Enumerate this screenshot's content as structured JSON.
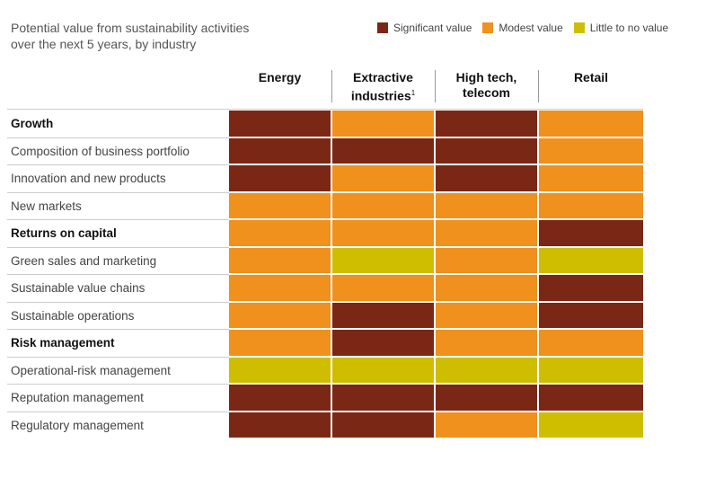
{
  "chart_data": {
    "type": "table",
    "subtitle": [
      "Potential value from sustainability activities",
      "over the next 5 years, by industry"
    ],
    "legend": [
      {
        "key": "S",
        "label": "Significant value",
        "color": "#7a2716"
      },
      {
        "key": "M",
        "label": "Modest value",
        "color": "#f0901d"
      },
      {
        "key": "L",
        "label": "Little to no value",
        "color": "#cfbe00"
      }
    ],
    "columns": [
      {
        "lines": [
          "Energy"
        ],
        "sup": ""
      },
      {
        "lines": [
          "Extractive",
          "industries"
        ],
        "sup": "1"
      },
      {
        "lines": [
          "High tech,",
          "telecom"
        ],
        "sup": ""
      },
      {
        "lines": [
          "Retail"
        ],
        "sup": ""
      }
    ],
    "rows": [
      {
        "label": "Growth",
        "bold": true,
        "values": [
          "S",
          "M",
          "S",
          "M"
        ]
      },
      {
        "label": "Composition of business portfolio",
        "bold": false,
        "values": [
          "S",
          "S",
          "S",
          "M"
        ]
      },
      {
        "label": "Innovation and new products",
        "bold": false,
        "values": [
          "S",
          "M",
          "S",
          "M"
        ]
      },
      {
        "label": "New markets",
        "bold": false,
        "values": [
          "M",
          "M",
          "M",
          "M"
        ]
      },
      {
        "label": "Returns on capital",
        "bold": true,
        "values": [
          "M",
          "M",
          "M",
          "S"
        ]
      },
      {
        "label": "Green sales and marketing",
        "bold": false,
        "values": [
          "M",
          "L",
          "M",
          "L"
        ]
      },
      {
        "label": "Sustainable value chains",
        "bold": false,
        "values": [
          "M",
          "M",
          "M",
          "S"
        ]
      },
      {
        "label": "Sustainable operations",
        "bold": false,
        "values": [
          "M",
          "S",
          "M",
          "S"
        ]
      },
      {
        "label": "Risk management",
        "bold": true,
        "values": [
          "M",
          "S",
          "M",
          "M"
        ]
      },
      {
        "label": "Operational-risk management",
        "bold": false,
        "values": [
          "L",
          "L",
          "L",
          "L"
        ]
      },
      {
        "label": "Reputation management",
        "bold": false,
        "values": [
          "S",
          "S",
          "S",
          "S"
        ]
      },
      {
        "label": "Regulatory management",
        "bold": false,
        "values": [
          "S",
          "S",
          "M",
          "L"
        ]
      }
    ]
  }
}
